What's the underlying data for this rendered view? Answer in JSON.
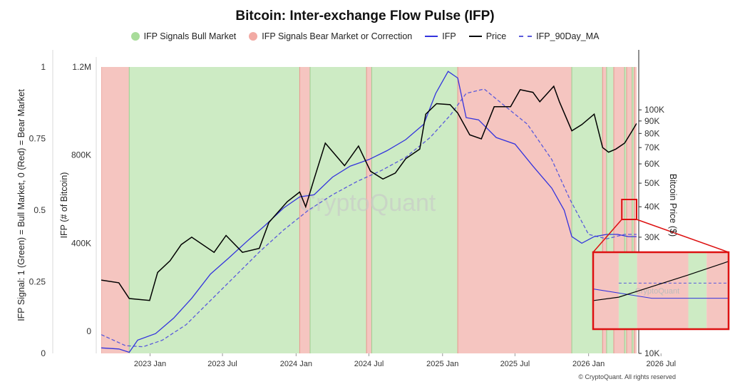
{
  "title": "Bitcoin: Inter-exchange Flow Pulse (IFP)",
  "legend": [
    {
      "label": "IFP Signals Bull Market",
      "kind": "dot",
      "color": "#a8dc9a"
    },
    {
      "label": "IFP Signals Bear Market or Correction",
      "kind": "dot",
      "color": "#f2aaa4"
    },
    {
      "label": "IFP",
      "kind": "line",
      "color": "#3333dd"
    },
    {
      "label": "Price",
      "kind": "line",
      "color": "#000000"
    },
    {
      "label": "IFP_90Day_MA",
      "kind": "dash",
      "color": "#5a5adb"
    }
  ],
  "axes": {
    "signal_label": "IFP Signal: 1 (Green) = Bull Market, 0 (Red) = Bear Market",
    "ifp_label": "IFP (# of Bitcoin)",
    "price_label": "Bitcoin Price ($)"
  },
  "watermark": "CryptoQuant",
  "footer": "© CryptoQuant. All rights reserved",
  "colors": {
    "bull": "#cdebc4",
    "bear": "#f5c5c0",
    "ifp": "#3333dd",
    "price": "#000000",
    "ma": "#5a5adb",
    "inset_border": "#dd1111"
  },
  "chart_data": {
    "type": "line",
    "x_range": [
      "2022-09-01",
      "2026-05-01"
    ],
    "x_ticks": [
      "2023 Jan",
      "2023 Jul",
      "2024 Jan",
      "2024 Jul",
      "2025 Jan",
      "2025 Jul",
      "2026 Jan",
      "2026 Jul"
    ],
    "y_signal_ticks": [
      "1",
      "0.75",
      "0.5",
      "0.25",
      "0"
    ],
    "y_signal_range": [
      0,
      1
    ],
    "y_ifp_ticks": [
      "1.2M",
      "800K",
      "400K",
      "0"
    ],
    "y_ifp_range": [
      -100000,
      1200000
    ],
    "y_price_ticks": [
      "100K",
      "90K",
      "80K",
      "70K",
      "60K",
      "50K",
      "40K",
      "30K",
      "10K"
    ],
    "y_price_scale": "log",
    "y_price_range": [
      10000,
      150000
    ],
    "signal_regimes": [
      {
        "start": "2022-09-01",
        "end": "2022-11-10",
        "signal": 0
      },
      {
        "start": "2022-11-10",
        "end": "2024-01-10",
        "signal": 1
      },
      {
        "start": "2024-01-10",
        "end": "2024-02-05",
        "signal": 0
      },
      {
        "start": "2024-02-05",
        "end": "2024-06-25",
        "signal": 1
      },
      {
        "start": "2024-06-25",
        "end": "2024-07-08",
        "signal": 0
      },
      {
        "start": "2024-07-08",
        "end": "2025-02-08",
        "signal": 1
      },
      {
        "start": "2025-02-08",
        "end": "2025-11-20",
        "signal": 0
      },
      {
        "start": "2025-11-20",
        "end": "2026-02-05",
        "signal": 1
      },
      {
        "start": "2026-02-05",
        "end": "2026-02-15",
        "signal": 0
      },
      {
        "start": "2026-02-15",
        "end": "2026-03-05",
        "signal": 1
      },
      {
        "start": "2026-03-05",
        "end": "2026-04-01",
        "signal": 0
      },
      {
        "start": "2026-04-01",
        "end": "2026-04-06",
        "signal": 1
      },
      {
        "start": "2026-04-06",
        "end": "2026-04-20",
        "signal": 0
      },
      {
        "start": "2026-04-20",
        "end": "2026-04-25",
        "signal": 1
      },
      {
        "start": "2026-04-25",
        "end": "2026-05-01",
        "signal": 0
      }
    ],
    "series": [
      {
        "name": "IFP",
        "points": [
          [
            "2022-09-01",
            -75000
          ],
          [
            "2022-10-15",
            -80000
          ],
          [
            "2022-11-10",
            -95000
          ],
          [
            "2022-12-01",
            -40000
          ],
          [
            "2023-01-15",
            -10000
          ],
          [
            "2023-03-01",
            60000
          ],
          [
            "2023-04-15",
            150000
          ],
          [
            "2023-06-01",
            260000
          ],
          [
            "2023-07-15",
            330000
          ],
          [
            "2023-09-01",
            410000
          ],
          [
            "2023-10-15",
            480000
          ],
          [
            "2023-12-01",
            560000
          ],
          [
            "2024-01-10",
            610000
          ],
          [
            "2024-02-15",
            620000
          ],
          [
            "2024-04-01",
            700000
          ],
          [
            "2024-05-15",
            750000
          ],
          [
            "2024-07-01",
            780000
          ],
          [
            "2024-08-15",
            820000
          ],
          [
            "2024-10-01",
            870000
          ],
          [
            "2024-11-15",
            940000
          ],
          [
            "2024-12-15",
            1080000
          ],
          [
            "2025-01-15",
            1180000
          ],
          [
            "2025-02-08",
            1150000
          ],
          [
            "2025-03-01",
            970000
          ],
          [
            "2025-04-01",
            960000
          ],
          [
            "2025-05-15",
            880000
          ],
          [
            "2025-07-01",
            850000
          ],
          [
            "2025-08-15",
            750000
          ],
          [
            "2025-10-01",
            650000
          ],
          [
            "2025-11-01",
            550000
          ],
          [
            "2025-11-20",
            430000
          ],
          [
            "2025-12-15",
            400000
          ],
          [
            "2026-01-15",
            430000
          ],
          [
            "2026-02-15",
            440000
          ],
          [
            "2026-03-15",
            440000
          ],
          [
            "2026-04-10",
            430000
          ],
          [
            "2026-05-01",
            430000
          ]
        ]
      },
      {
        "name": "IFP_90Day_MA",
        "points": [
          [
            "2022-09-01",
            -15000
          ],
          [
            "2022-11-01",
            -65000
          ],
          [
            "2022-12-15",
            -70000
          ],
          [
            "2023-02-01",
            -40000
          ],
          [
            "2023-04-01",
            30000
          ],
          [
            "2023-06-01",
            140000
          ],
          [
            "2023-08-01",
            250000
          ],
          [
            "2023-10-01",
            360000
          ],
          [
            "2023-12-01",
            460000
          ],
          [
            "2024-02-01",
            550000
          ],
          [
            "2024-04-01",
            620000
          ],
          [
            "2024-06-01",
            680000
          ],
          [
            "2024-08-01",
            730000
          ],
          [
            "2024-10-01",
            790000
          ],
          [
            "2024-12-01",
            880000
          ],
          [
            "2025-01-20",
            980000
          ],
          [
            "2025-03-01",
            1080000
          ],
          [
            "2025-04-15",
            1100000
          ],
          [
            "2025-06-01",
            1030000
          ],
          [
            "2025-08-01",
            940000
          ],
          [
            "2025-10-01",
            780000
          ],
          [
            "2025-11-15",
            600000
          ],
          [
            "2026-01-01",
            440000
          ],
          [
            "2026-02-15",
            420000
          ],
          [
            "2026-04-01",
            440000
          ],
          [
            "2026-05-01",
            440000
          ]
        ]
      },
      {
        "name": "Price",
        "points": [
          [
            "2022-09-01",
            20000
          ],
          [
            "2022-10-15",
            19500
          ],
          [
            "2022-11-10",
            16800
          ],
          [
            "2022-12-31",
            16500
          ],
          [
            "2023-01-20",
            21500
          ],
          [
            "2023-02-20",
            24000
          ],
          [
            "2023-03-20",
            28000
          ],
          [
            "2023-04-15",
            30000
          ],
          [
            "2023-06-10",
            26000
          ],
          [
            "2023-07-10",
            30500
          ],
          [
            "2023-08-20",
            26000
          ],
          [
            "2023-10-01",
            27000
          ],
          [
            "2023-10-25",
            34500
          ],
          [
            "2023-12-10",
            42000
          ],
          [
            "2024-01-10",
            46000
          ],
          [
            "2024-01-25",
            40000
          ],
          [
            "2024-02-15",
            52000
          ],
          [
            "2024-03-14",
            73000
          ],
          [
            "2024-05-01",
            59000
          ],
          [
            "2024-06-05",
            71000
          ],
          [
            "2024-07-05",
            56000
          ],
          [
            "2024-08-05",
            52000
          ],
          [
            "2024-09-05",
            55000
          ],
          [
            "2024-10-01",
            63000
          ],
          [
            "2024-11-05",
            69000
          ],
          [
            "2024-11-20",
            96000
          ],
          [
            "2024-12-17",
            106000
          ],
          [
            "2025-01-20",
            105000
          ],
          [
            "2025-02-08",
            97000
          ],
          [
            "2025-03-10",
            79000
          ],
          [
            "2025-04-08",
            76000
          ],
          [
            "2025-05-10",
            103000
          ],
          [
            "2025-06-20",
            103000
          ],
          [
            "2025-07-14",
            121000
          ],
          [
            "2025-08-15",
            118000
          ],
          [
            "2025-09-01",
            108000
          ],
          [
            "2025-10-06",
            125000
          ],
          [
            "2025-10-20",
            108000
          ],
          [
            "2025-11-20",
            82000
          ],
          [
            "2025-12-15",
            87000
          ],
          [
            "2026-01-15",
            96000
          ],
          [
            "2026-02-05",
            70000
          ],
          [
            "2026-02-20",
            67000
          ],
          [
            "2026-03-10",
            69000
          ],
          [
            "2026-04-01",
            73000
          ],
          [
            "2026-04-20",
            82000
          ],
          [
            "2026-05-01",
            88000
          ]
        ]
      }
    ]
  }
}
